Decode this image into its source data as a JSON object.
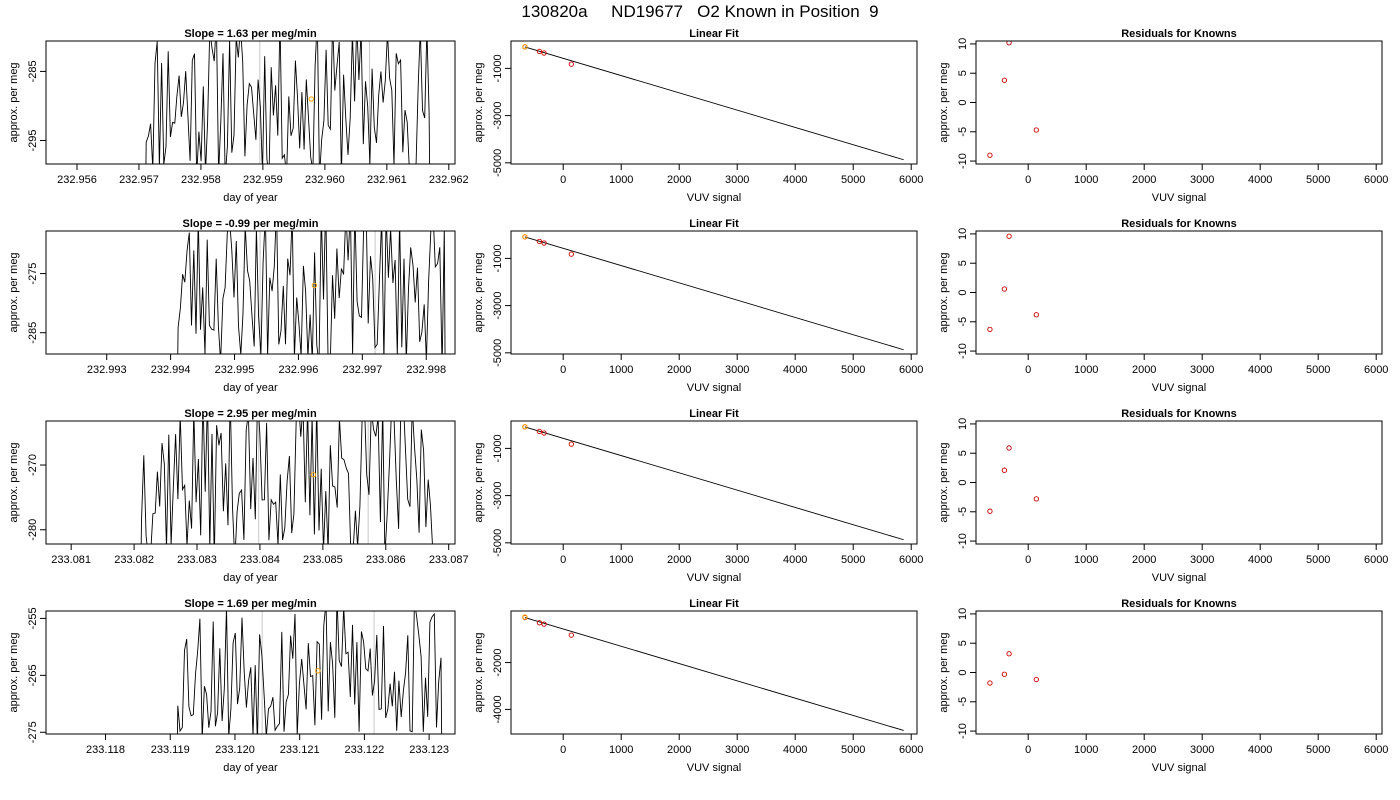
{
  "title": "130820a     ND19677   O2 Known in Position  9",
  "chart_data": [
    {
      "type": "line",
      "panel": "time",
      "title": "Slope =  1.63  per meg/min",
      "xlabel": "day of year",
      "ylabel": "approx. per meg",
      "xlim": [
        232.9555,
        232.9621
      ],
      "ylim": [
        -298.4,
        -280.6
      ],
      "xticks": [
        232.956,
        232.957,
        232.958,
        232.959,
        232.96,
        232.961,
        232.962
      ],
      "xtick_labels": [
        "232.956",
        "232.957",
        "232.958",
        "232.959",
        "232.960",
        "232.961",
        "232.962"
      ],
      "yticks": [
        -295,
        -285
      ],
      "ytick_labels": [
        "-295",
        "-285"
      ],
      "vlines": [
        232.95895,
        232.96072
      ],
      "x_start": 232.9571,
      "x_end": 232.9617,
      "series_n": 130,
      "seed": 11,
      "y_center": -289,
      "y_amp": 12,
      "marker": {
        "x": 232.95978,
        "y": -289.0,
        "color": "#FFA500"
      }
    },
    {
      "type": "scatter",
      "panel": "fit",
      "title": "Linear Fit",
      "xlabel": "VUV signal",
      "ylabel": "approx. per meg",
      "xlim": [
        -900,
        6100
      ],
      "ylim": [
        -5050,
        160
      ],
      "xticks": [
        0,
        1000,
        2000,
        3000,
        4000,
        5000,
        6000
      ],
      "xtick_labels": [
        "0",
        "1000",
        "2000",
        "3000",
        "4000",
        "5000",
        "6000"
      ],
      "yticks": [
        -5000,
        -3000,
        -1000
      ],
      "ytick_labels": [
        "-5000",
        "-3000",
        "-1000"
      ],
      "points": [
        {
          "x": -660,
          "y": -90
        },
        {
          "x": -410,
          "y": -280
        },
        {
          "x": -330,
          "y": -350
        },
        {
          "x": 140,
          "y": -820
        }
      ],
      "highlight": {
        "x": -660,
        "y": -80,
        "color": "#FFA500"
      },
      "fit_line": {
        "x0": -660,
        "y0": -90,
        "x1": 5870,
        "y1": -4870
      }
    },
    {
      "type": "scatter",
      "panel": "resid",
      "title": "Residuals for Knowns",
      "xlabel": "VUV signal",
      "ylabel": "approx. per meg",
      "xlim": [
        -900,
        6100
      ],
      "ylim": [
        -10.5,
        10.5
      ],
      "xticks": [
        0,
        1000,
        2000,
        3000,
        4000,
        5000,
        6000
      ],
      "xtick_labels": [
        "0",
        "1000",
        "2000",
        "3000",
        "4000",
        "5000",
        "6000"
      ],
      "yticks": [
        -10,
        -5,
        0,
        5,
        10
      ],
      "ytick_labels": [
        "-10",
        "-5",
        "0",
        "5",
        "10"
      ],
      "points": [
        {
          "x": -660,
          "y": -9.0
        },
        {
          "x": -410,
          "y": 3.8
        },
        {
          "x": -330,
          "y": 10.2
        },
        {
          "x": 140,
          "y": -4.7
        }
      ]
    },
    {
      "type": "line",
      "panel": "time",
      "title": "Slope =  -0.99  per meg/min",
      "xlabel": "day of year",
      "ylabel": "approx. per meg",
      "xlim": [
        232.99205,
        232.99845
      ],
      "ylim": [
        -288.6,
        -267.8
      ],
      "xticks": [
        232.993,
        232.994,
        232.995,
        232.996,
        232.997,
        232.998
      ],
      "xtick_labels": [
        "232.993",
        "232.994",
        "232.995",
        "232.996",
        "232.997",
        "232.998"
      ],
      "yticks": [
        -285,
        -275
      ],
      "ytick_labels": [
        "-285",
        "-275"
      ],
      "vlines": [
        232.9954,
        232.9972
      ],
      "x_start": 232.9941,
      "x_end": 232.9983,
      "series_n": 120,
      "seed": 23,
      "y_center": -277,
      "y_amp": 14,
      "marker": {
        "x": 232.99625,
        "y": -277.0,
        "color": "#FFA500"
      }
    },
    {
      "type": "scatter",
      "panel": "fit",
      "title": "Linear Fit",
      "xlabel": "VUV signal",
      "ylabel": "approx. per meg",
      "xlim": [
        -900,
        6100
      ],
      "ylim": [
        -5050,
        160
      ],
      "xticks": [
        0,
        1000,
        2000,
        3000,
        4000,
        5000,
        6000
      ],
      "xtick_labels": [
        "0",
        "1000",
        "2000",
        "3000",
        "4000",
        "5000",
        "6000"
      ],
      "yticks": [
        -5000,
        -3000,
        -1000
      ],
      "ytick_labels": [
        "-5000",
        "-3000",
        "-1000"
      ],
      "points": [
        {
          "x": -660,
          "y": -90
        },
        {
          "x": -410,
          "y": -280
        },
        {
          "x": -330,
          "y": -350
        },
        {
          "x": 140,
          "y": -820
        }
      ],
      "highlight": {
        "x": -660,
        "y": -80,
        "color": "#FFA500"
      },
      "fit_line": {
        "x0": -660,
        "y0": -90,
        "x1": 5870,
        "y1": -4870
      }
    },
    {
      "type": "scatter",
      "panel": "resid",
      "title": "Residuals for Knowns",
      "xlabel": "VUV signal",
      "ylabel": "approx. per meg",
      "xlim": [
        -900,
        6100
      ],
      "ylim": [
        -10.5,
        10.5
      ],
      "xticks": [
        0,
        1000,
        2000,
        3000,
        4000,
        5000,
        6000
      ],
      "xtick_labels": [
        "0",
        "1000",
        "2000",
        "3000",
        "4000",
        "5000",
        "6000"
      ],
      "yticks": [
        -10,
        -5,
        0,
        5,
        10
      ],
      "ytick_labels": [
        "-10",
        "-5",
        "0",
        "5",
        "10"
      ],
      "points": [
        {
          "x": -660,
          "y": -6.3
        },
        {
          "x": -410,
          "y": 0.6
        },
        {
          "x": -330,
          "y": 9.6
        },
        {
          "x": 140,
          "y": -3.8
        }
      ]
    },
    {
      "type": "line",
      "panel": "time",
      "title": "Slope =  2.95  per meg/min",
      "xlabel": "day of year",
      "ylabel": "approx. per meg",
      "xlim": [
        233.0806,
        233.0871
      ],
      "ylim": [
        -282.2,
        -263.2
      ],
      "xticks": [
        233.081,
        233.082,
        233.083,
        233.084,
        233.085,
        233.086,
        233.087
      ],
      "xtick_labels": [
        "233.081",
        "233.082",
        "233.083",
        "233.084",
        "233.085",
        "233.086",
        "233.087"
      ],
      "yticks": [
        -280,
        -270
      ],
      "ytick_labels": [
        "-280",
        "-270"
      ],
      "vlines": [
        233.08398,
        233.08572
      ],
      "x_start": 233.0821,
      "x_end": 233.0868,
      "series_n": 130,
      "seed": 37,
      "y_center": -272,
      "y_amp": 13,
      "marker": {
        "x": 233.08485,
        "y": -271.5,
        "color": "#FFA500"
      }
    },
    {
      "type": "scatter",
      "panel": "fit",
      "title": "Linear Fit",
      "xlabel": "VUV signal",
      "ylabel": "approx. per meg",
      "xlim": [
        -900,
        6100
      ],
      "ylim": [
        -5050,
        160
      ],
      "xticks": [
        0,
        1000,
        2000,
        3000,
        4000,
        5000,
        6000
      ],
      "xtick_labels": [
        "0",
        "1000",
        "2000",
        "3000",
        "4000",
        "5000",
        "6000"
      ],
      "yticks": [
        -5000,
        -3000,
        -1000
      ],
      "ytick_labels": [
        "-5000",
        "-3000",
        "-1000"
      ],
      "points": [
        {
          "x": -660,
          "y": -90
        },
        {
          "x": -410,
          "y": -280
        },
        {
          "x": -330,
          "y": -350
        },
        {
          "x": 140,
          "y": -820
        }
      ],
      "highlight": {
        "x": -660,
        "y": -80,
        "color": "#FFA500"
      },
      "fit_line": {
        "x0": -660,
        "y0": -90,
        "x1": 5870,
        "y1": -4870
      }
    },
    {
      "type": "scatter",
      "panel": "resid",
      "title": "Residuals for Knowns",
      "xlabel": "VUV signal",
      "ylabel": "approx. per meg",
      "xlim": [
        -900,
        6100
      ],
      "ylim": [
        -10.5,
        10.5
      ],
      "xticks": [
        0,
        1000,
        2000,
        3000,
        4000,
        5000,
        6000
      ],
      "xtick_labels": [
        "0",
        "1000",
        "2000",
        "3000",
        "4000",
        "5000",
        "6000"
      ],
      "yticks": [
        -10,
        -5,
        0,
        5,
        10
      ],
      "ytick_labels": [
        "-10",
        "-5",
        "0",
        "5",
        "10"
      ],
      "points": [
        {
          "x": -660,
          "y": -4.9
        },
        {
          "x": -410,
          "y": 2.1
        },
        {
          "x": -330,
          "y": 5.9
        },
        {
          "x": 140,
          "y": -2.8
        }
      ]
    },
    {
      "type": "line",
      "panel": "time",
      "title": "Slope =  1.69  per meg/min",
      "xlabel": "day of year",
      "ylabel": "approx. per meg",
      "xlim": [
        233.11708,
        233.1234
      ],
      "ylim": [
        -275.3,
        -253.7
      ],
      "xticks": [
        233.118,
        233.119,
        233.12,
        233.121,
        233.122,
        233.123
      ],
      "xtick_labels": [
        "233.118",
        "233.119",
        "233.120",
        "233.121",
        "233.122",
        "233.123"
      ],
      "yticks": [
        -275,
        -265,
        -255
      ],
      "ytick_labels": [
        "-275",
        "-265",
        "-255"
      ],
      "vlines": [
        233.12042,
        233.12215
      ],
      "x_start": 233.1191,
      "x_end": 233.1232,
      "series_n": 120,
      "seed": 53,
      "y_center": -264,
      "y_amp": 13,
      "marker": {
        "x": 233.12128,
        "y": -264.2,
        "color": "#FFA500"
      }
    },
    {
      "type": "scatter",
      "panel": "fit",
      "title": "Linear Fit",
      "xlabel": "VUV signal",
      "ylabel": "approx. per meg",
      "xlim": [
        -900,
        6100
      ],
      "ylim": [
        -5050,
        200
      ],
      "xticks": [
        0,
        1000,
        2000,
        3000,
        4000,
        5000,
        6000
      ],
      "xtick_labels": [
        "0",
        "1000",
        "2000",
        "3000",
        "4000",
        "5000",
        "6000"
      ],
      "yticks": [
        -4000,
        -2000
      ],
      "ytick_labels": [
        "-4000",
        "-2000"
      ],
      "points": [
        {
          "x": -660,
          "y": -80
        },
        {
          "x": -410,
          "y": -300
        },
        {
          "x": -330,
          "y": -360
        },
        {
          "x": 140,
          "y": -830
        }
      ],
      "highlight": {
        "x": -660,
        "y": -60,
        "color": "#FFA500"
      },
      "fit_line": {
        "x0": -660,
        "y0": -80,
        "x1": 5870,
        "y1": -4900
      }
    },
    {
      "type": "scatter",
      "panel": "resid",
      "title": "Residuals for Knowns",
      "xlabel": "VUV signal",
      "ylabel": "approx. per meg",
      "xlim": [
        -900,
        6100
      ],
      "ylim": [
        -10.5,
        10.5
      ],
      "xticks": [
        0,
        1000,
        2000,
        3000,
        4000,
        5000,
        6000
      ],
      "xtick_labels": [
        "0",
        "1000",
        "2000",
        "3000",
        "4000",
        "5000",
        "6000"
      ],
      "yticks": [
        -10,
        -5,
        0,
        5,
        10
      ],
      "ytick_labels": [
        "-10",
        "-5",
        "0",
        "5",
        "10"
      ],
      "points": [
        {
          "x": -660,
          "y": -1.8
        },
        {
          "x": -410,
          "y": -0.3
        },
        {
          "x": -330,
          "y": 3.2
        },
        {
          "x": 140,
          "y": -1.2
        }
      ]
    }
  ]
}
